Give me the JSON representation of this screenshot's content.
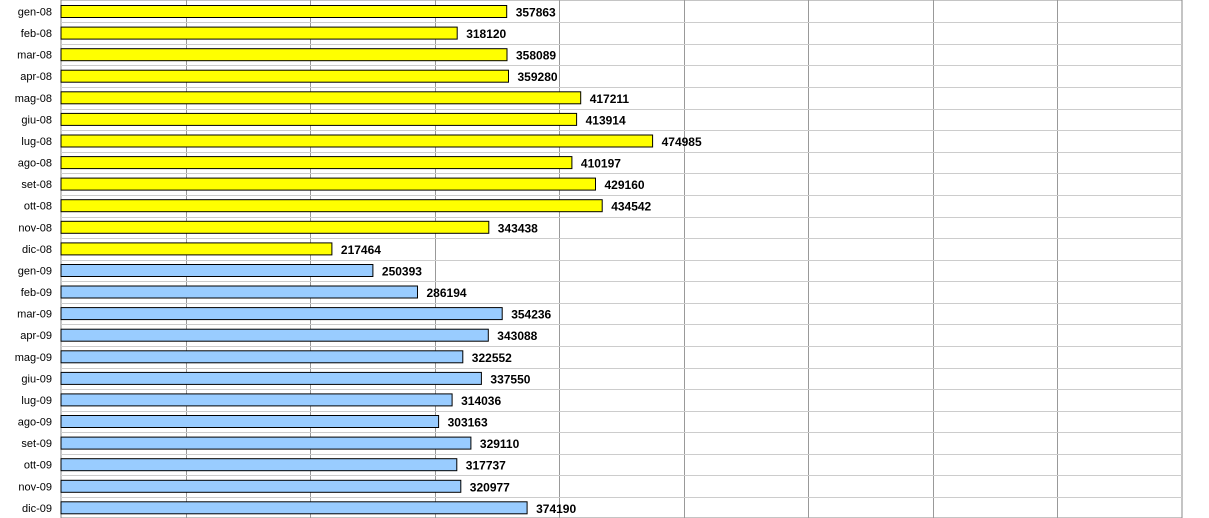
{
  "chart_data": {
    "type": "bar",
    "orientation": "horizontal",
    "categories": [
      "gen-08",
      "feb-08",
      "mar-08",
      "apr-08",
      "mag-08",
      "giu-08",
      "lug-08",
      "ago-08",
      "set-08",
      "ott-08",
      "nov-08",
      "dic-08",
      "gen-09",
      "feb-09",
      "mar-09",
      "apr-09",
      "mag-09",
      "giu-09",
      "lug-09",
      "ago-09",
      "set-09",
      "ott-09",
      "nov-09",
      "dic-09"
    ],
    "values": [
      357863,
      318120,
      358089,
      359280,
      417211,
      413914,
      474985,
      410197,
      429160,
      434542,
      343438,
      217464,
      250393,
      286194,
      354236,
      343088,
      322552,
      337550,
      314036,
      303163,
      329110,
      317737,
      320977,
      374190
    ],
    "colors": [
      "#ffff00",
      "#ffff00",
      "#ffff00",
      "#ffff00",
      "#ffff00",
      "#ffff00",
      "#ffff00",
      "#ffff00",
      "#ffff00",
      "#ffff00",
      "#ffff00",
      "#ffff00",
      "#99ccff",
      "#99ccff",
      "#99ccff",
      "#99ccff",
      "#99ccff",
      "#99ccff",
      "#99ccff",
      "#99ccff",
      "#99ccff",
      "#99ccff",
      "#99ccff",
      "#99ccff"
    ],
    "xlim": [
      0,
      900000
    ],
    "grid": true,
    "legend": "none",
    "data_labels": true,
    "title": "",
    "xlabel": "",
    "ylabel": ""
  }
}
